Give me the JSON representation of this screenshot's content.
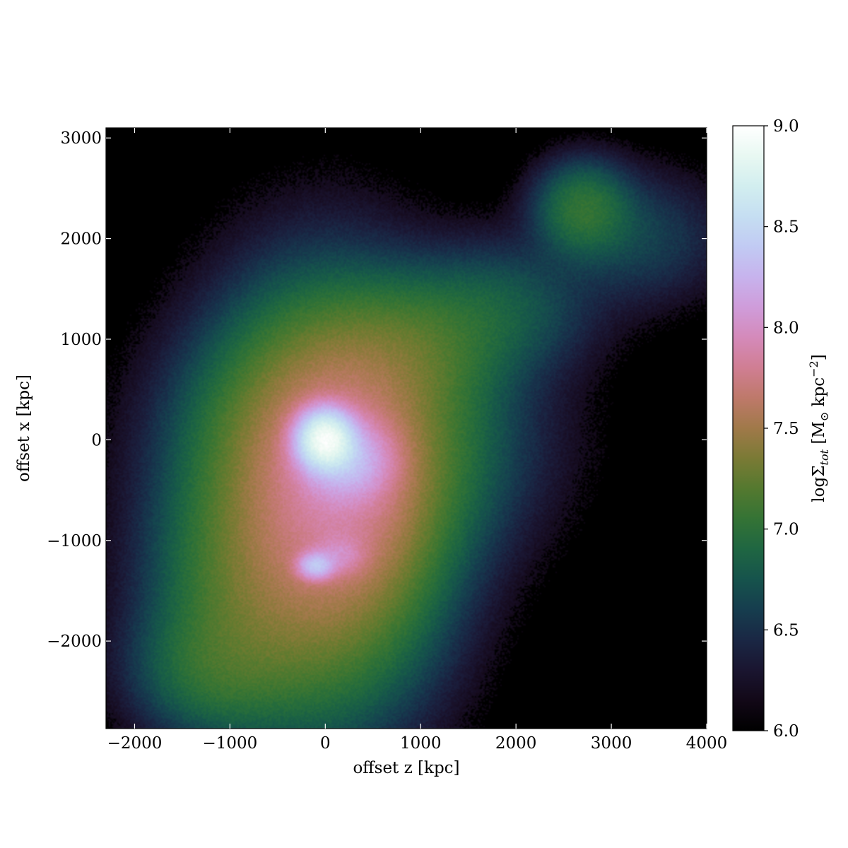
{
  "chart_data": {
    "type": "heatmap",
    "title": "",
    "xlabel": "offset z [kpc]",
    "ylabel": "offset x [kpc]",
    "xlim": [
      -2300,
      4000
    ],
    "ylim": [
      -2870,
      3100
    ],
    "x_ticks": [
      -2000,
      -1000,
      0,
      1000,
      2000,
      3000,
      4000
    ],
    "x_tick_labels": [
      "−2000",
      "−1000",
      "0",
      "1000",
      "2000",
      "3000",
      "4000"
    ],
    "y_ticks": [
      -2000,
      -1000,
      0,
      1000,
      2000,
      3000
    ],
    "y_tick_labels": [
      "−2000",
      "−1000",
      "0",
      "1000",
      "2000",
      "3000"
    ],
    "colorbar": {
      "label_prefix": "logΣ",
      "label_sub": "tot",
      "label_unit_open": " [M",
      "label_unit_sun": "⊙",
      "label_unit_mid": " kpc",
      "label_unit_exp": "−2",
      "label_unit_close": "]",
      "range": [
        6.0,
        9.0
      ],
      "ticks": [
        6.0,
        6.5,
        7.0,
        7.5,
        8.0,
        8.5,
        9.0
      ],
      "tick_labels": [
        "6.0",
        "6.5",
        "7.0",
        "7.5",
        "8.0",
        "8.5",
        "9.0"
      ],
      "colormap": "cubehelix"
    },
    "background_value": 6.0,
    "surface_density_components": [
      {
        "x": 0,
        "y": 0,
        "peak": 2.9,
        "sx": 160,
        "sy": 160
      },
      {
        "x": 220,
        "y": -200,
        "peak": 2.2,
        "sx": 260,
        "sy": 220
      },
      {
        "x": 150,
        "y": -400,
        "peak": 1.6,
        "sx": 450,
        "sy": 650
      },
      {
        "x": -100,
        "y": -1250,
        "peak": 2.3,
        "sx": 110,
        "sy": 80
      },
      {
        "x": 150,
        "y": -1150,
        "peak": 1.7,
        "sx": 160,
        "sy": 120
      },
      {
        "x": 0,
        "y": -600,
        "peak": 1.5,
        "sx": 700,
        "sy": 1100
      },
      {
        "x": -700,
        "y": -1500,
        "peak": 1.0,
        "sx": 650,
        "sy": 700
      },
      {
        "x": 300,
        "y": 0,
        "peak": 1.1,
        "sx": 950,
        "sy": 700
      },
      {
        "x": 900,
        "y": 900,
        "peak": 0.9,
        "sx": 550,
        "sy": 400
      },
      {
        "x": 1800,
        "y": 1300,
        "peak": 0.7,
        "sx": 600,
        "sy": 400
      },
      {
        "x": 2700,
        "y": 2300,
        "peak": 0.95,
        "sx": 300,
        "sy": 280
      },
      {
        "x": 3300,
        "y": 2000,
        "peak": 0.5,
        "sx": 550,
        "sy": 400
      },
      {
        "x": -1200,
        "y": -2300,
        "peak": 0.8,
        "sx": 500,
        "sy": 400
      }
    ]
  }
}
